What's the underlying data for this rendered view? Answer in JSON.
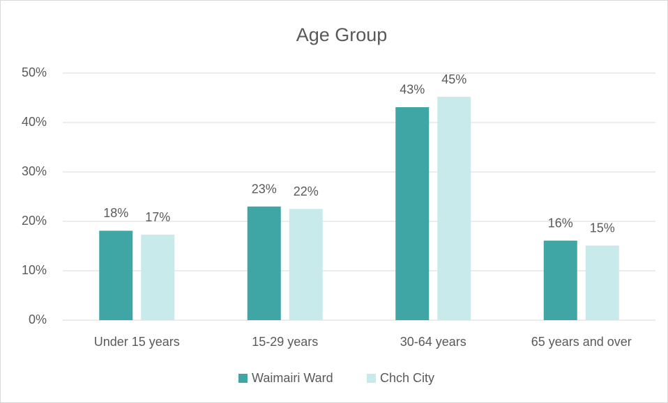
{
  "chart_data": {
    "type": "bar",
    "title": "Age Group",
    "categories": [
      "Under 15 years",
      "15-29 years",
      "30-64 years",
      "65 years and over"
    ],
    "series": [
      {
        "name": "Waimairi Ward",
        "color": "#40a5a5",
        "values": [
          18.1,
          23,
          43.1,
          16.1
        ],
        "value_labels": [
          "18%",
          "23%",
          "43%",
          "16%"
        ]
      },
      {
        "name": "Chch City",
        "color": "#c9eaea",
        "values": [
          17.3,
          22.5,
          45.2,
          15.1
        ],
        "value_labels": [
          "17%",
          "22%",
          "45%",
          "15%"
        ]
      }
    ],
    "ylim": [
      0,
      50
    ],
    "yticks": [
      {
        "value": 0,
        "label": "0%"
      },
      {
        "value": 10,
        "label": "10%"
      },
      {
        "value": 20,
        "label": "20%"
      },
      {
        "value": 30,
        "label": "30%"
      },
      {
        "value": 40,
        "label": "40%"
      },
      {
        "value": 50,
        "label": "50%"
      }
    ],
    "grid": true,
    "legend": "bottom"
  }
}
